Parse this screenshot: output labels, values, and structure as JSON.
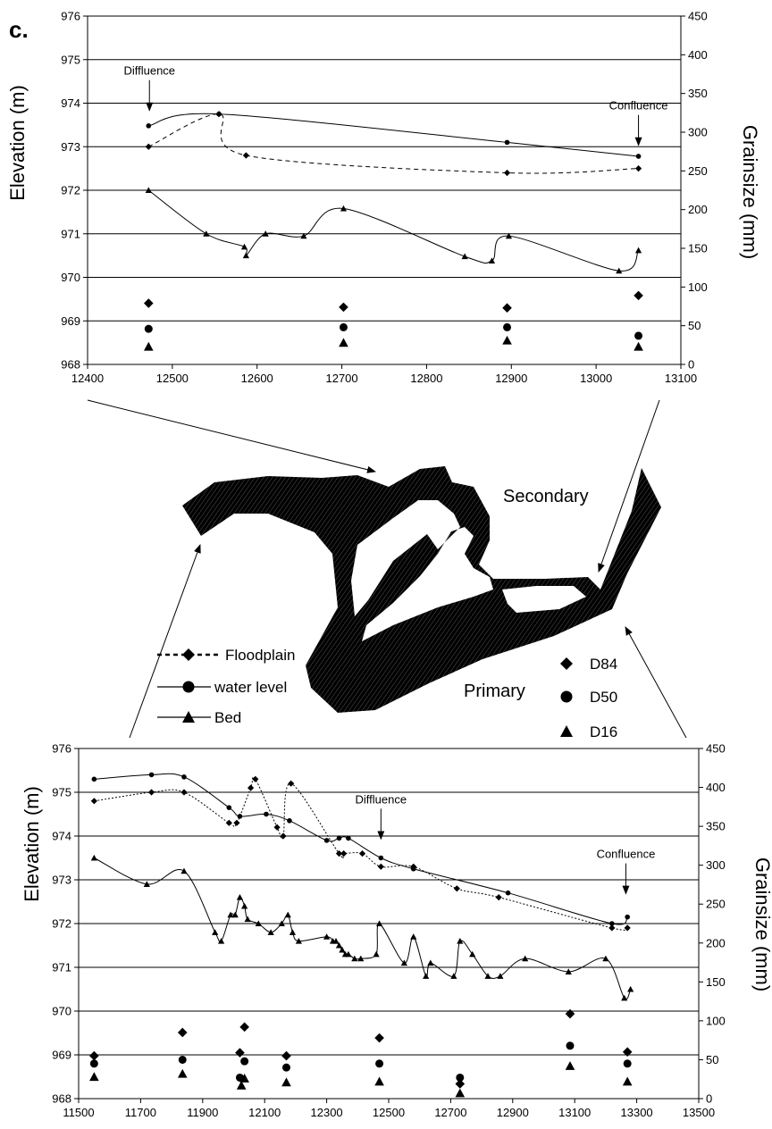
{
  "panel_label": "c.",
  "map": {
    "secondary_label": "Secondary",
    "primary_label": "Primary"
  },
  "legend": {
    "floodplain": "Floodplain",
    "water_level": "water level",
    "bed": "Bed",
    "d84": "D84",
    "d50": "D50",
    "d16": "D16"
  },
  "chart_data": [
    {
      "type": "line",
      "xlabel": "",
      "ylabel": "Elevation (m)",
      "y2label": "Grainsize (mm)",
      "xlim": [
        12400,
        13100
      ],
      "xticks": [
        12400,
        12500,
        12600,
        12700,
        12800,
        12900,
        13000,
        13100
      ],
      "ylim": [
        968,
        976
      ],
      "yticks": [
        968,
        969,
        970,
        971,
        972,
        973,
        974,
        975,
        976
      ],
      "y2lim": [
        0,
        450
      ],
      "y2ticks": [
        0,
        50,
        100,
        150,
        200,
        250,
        300,
        350,
        400,
        450
      ],
      "grid": "horizontal",
      "annotations": [
        {
          "text": "Diffluence",
          "x": 12473,
          "y": 973.75
        },
        {
          "text": "Confluence",
          "x": 13050,
          "y": 972.95
        }
      ],
      "series": [
        {
          "name": "Floodplain",
          "axis": "left",
          "marker": "diamond",
          "line": "dashed",
          "x": [
            12472,
            12555,
            12587,
            12895,
            13050
          ],
          "y": [
            973.0,
            973.75,
            972.8,
            972.4,
            972.5
          ]
        },
        {
          "name": "water level",
          "axis": "left",
          "marker": "circle",
          "line": "solid",
          "x": [
            12472,
            12555,
            12895,
            13050
          ],
          "y": [
            973.48,
            973.75,
            973.1,
            972.78
          ]
        },
        {
          "name": "Bed",
          "axis": "left",
          "marker": "triangle",
          "line": "solid",
          "x": [
            12472,
            12540,
            12585,
            12587,
            12610,
            12655,
            12702,
            12845,
            12877,
            12897,
            13027,
            13050
          ],
          "y": [
            972.0,
            971.0,
            970.7,
            970.5,
            971.0,
            970.95,
            971.58,
            970.48,
            970.38,
            970.95,
            970.15,
            970.62
          ]
        },
        {
          "name": "D84",
          "axis": "right",
          "marker": "diamond",
          "line": "none",
          "x": [
            12472,
            12702,
            12895,
            13050
          ],
          "y": [
            79,
            74,
            73,
            89
          ]
        },
        {
          "name": "D50",
          "axis": "right",
          "marker": "circle",
          "line": "none",
          "x": [
            12472,
            12702,
            12895,
            13050
          ],
          "y": [
            46,
            48,
            48,
            37
          ]
        },
        {
          "name": "D16",
          "axis": "right",
          "marker": "triangle",
          "line": "none",
          "x": [
            12472,
            12702,
            12895,
            13050
          ],
          "y": [
            23,
            28,
            31,
            23
          ]
        }
      ]
    },
    {
      "type": "line",
      "xlabel": "",
      "ylabel": "Elevation (m)",
      "y2label": "Grainsize (mm)",
      "xlim": [
        11500,
        13500
      ],
      "xticks": [
        11500,
        11700,
        11900,
        12100,
        12300,
        12500,
        12700,
        12900,
        13100,
        13300,
        13500
      ],
      "ylim": [
        968,
        976
      ],
      "yticks": [
        968,
        969,
        970,
        971,
        972,
        973,
        974,
        975,
        976
      ],
      "y2lim": [
        0,
        450
      ],
      "y2ticks": [
        0,
        50,
        100,
        150,
        200,
        250,
        300,
        350,
        400,
        450
      ],
      "grid": "horizontal",
      "annotations": [
        {
          "text": "Diffluence",
          "x": 12475,
          "y": 973.85
        },
        {
          "text": "Confluence",
          "x": 13265,
          "y": 972.6
        }
      ],
      "series": [
        {
          "name": "Floodplain",
          "axis": "left",
          "marker": "diamond",
          "line": "dotted",
          "x": [
            11550,
            11735,
            11840,
            11985,
            12010,
            12055,
            12070,
            12140,
            12160,
            12185,
            12340,
            12355,
            12415,
            12475,
            12580,
            12720,
            12855,
            13220,
            13270
          ],
          "y": [
            974.8,
            975.0,
            975.0,
            974.3,
            974.3,
            975.1,
            975.3,
            974.2,
            974.0,
            975.2,
            973.6,
            973.6,
            973.6,
            973.3,
            973.3,
            972.8,
            972.6,
            971.9,
            971.9
          ]
        },
        {
          "name": "water level",
          "axis": "left",
          "marker": "circle",
          "line": "solid",
          "x": [
            11550,
            11735,
            11840,
            11985,
            12020,
            12105,
            12180,
            12300,
            12340,
            12370,
            12475,
            12580,
            12885,
            13220,
            13270
          ],
          "y": [
            975.3,
            975.4,
            975.35,
            974.65,
            974.45,
            974.5,
            974.35,
            973.9,
            973.95,
            973.95,
            973.5,
            973.25,
            972.7,
            972.0,
            972.15
          ]
        },
        {
          "name": "Bed",
          "axis": "left",
          "marker": "triangle",
          "line": "solid",
          "x": [
            11550,
            11720,
            11840,
            11940,
            11960,
            11990,
            12005,
            12020,
            12035,
            12045,
            12080,
            12120,
            12155,
            12175,
            12190,
            12210,
            12300,
            12320,
            12330,
            12340,
            12350,
            12360,
            12370,
            12390,
            12410,
            12460,
            12470,
            12550,
            12580,
            12620,
            12635,
            12710,
            12730,
            12770,
            12820,
            12860,
            12940,
            13080,
            13200,
            13260,
            13280
          ],
          "y": [
            973.5,
            972.9,
            973.2,
            971.8,
            971.6,
            972.2,
            972.2,
            972.6,
            972.4,
            972.1,
            972.0,
            971.8,
            972.0,
            972.2,
            971.8,
            971.6,
            971.7,
            971.6,
            971.6,
            971.5,
            971.4,
            971.3,
            971.3,
            971.2,
            971.2,
            971.3,
            972.0,
            971.1,
            971.7,
            970.8,
            971.1,
            970.8,
            971.6,
            971.3,
            970.8,
            970.8,
            971.2,
            970.9,
            971.2,
            970.3,
            970.5
          ]
        },
        {
          "name": "D84",
          "axis": "right",
          "marker": "diamond",
          "line": "none",
          "x": [
            11550,
            11835,
            12020,
            12035,
            12170,
            12470,
            12730,
            13085,
            13270
          ],
          "y": [
            55,
            85,
            59,
            92,
            55,
            78,
            19,
            109,
            60
          ]
        },
        {
          "name": "D50",
          "axis": "right",
          "marker": "circle",
          "line": "none",
          "x": [
            11550,
            11835,
            12020,
            12035,
            12170,
            12470,
            12730,
            13085,
            13270
          ],
          "y": [
            45,
            50,
            27,
            48,
            40,
            45,
            27,
            68,
            45
          ]
        },
        {
          "name": "D16",
          "axis": "right",
          "marker": "triangle",
          "line": "none",
          "x": [
            11550,
            11835,
            12025,
            12035,
            12170,
            12470,
            12730,
            13085,
            13270
          ],
          "y": [
            28,
            32,
            17,
            26,
            21,
            22,
            7,
            42,
            22
          ]
        }
      ]
    }
  ]
}
